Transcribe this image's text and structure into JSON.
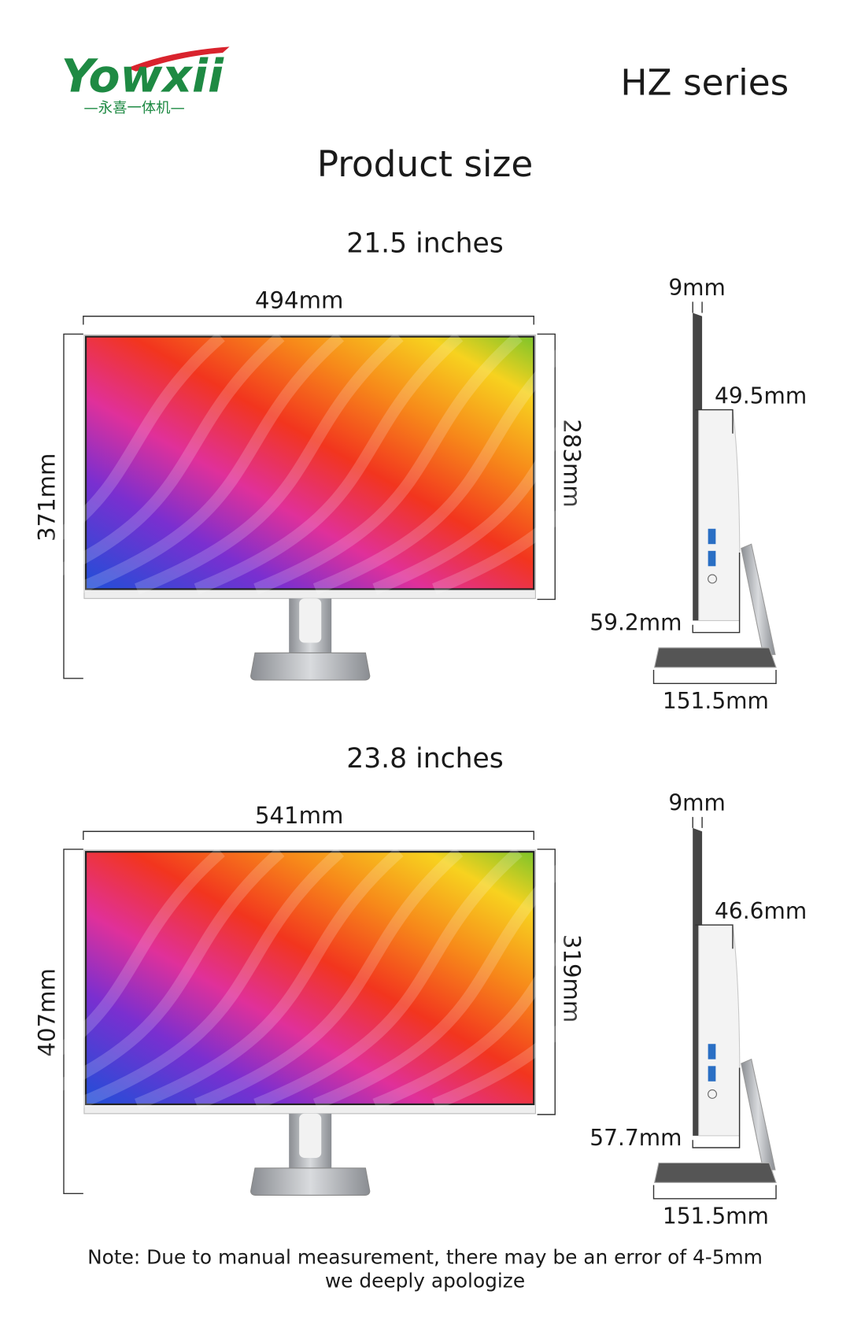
{
  "header": {
    "logo": "Yowxii",
    "logo_sub": "—永喜一体机—",
    "series": "HZ series"
  },
  "title": "Product size",
  "sections": [
    {
      "label": "21.5 inches",
      "width": "494mm",
      "height": "371mm",
      "screen_height": "283mm",
      "thickness": "9mm",
      "back_depth": "49.5mm",
      "bottom_depth": "59.2mm",
      "base_depth": "151.5mm"
    },
    {
      "label": "23.8 inches",
      "width": "541mm",
      "height": "407mm",
      "screen_height": "319mm",
      "thickness": "9mm",
      "back_depth": "46.6mm",
      "bottom_depth": "57.7mm",
      "base_depth": "151.5mm"
    }
  ],
  "note": [
    "Note: Due to manual measurement, there may be an error of 4-5mm",
    "we deeply apologize"
  ]
}
